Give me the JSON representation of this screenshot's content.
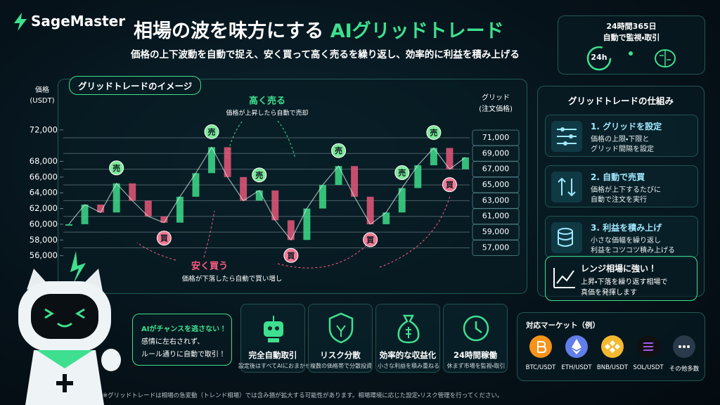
{
  "header": {
    "logo": "SageMaster",
    "title_prefix": "相場の波を味方にする",
    "title_highlight": "AIグリッドトレード",
    "subtitle": "価格の上下波動を自動で捉え、安く買って高く売るを繰り返し、効率的に利益を積み上げる"
  },
  "badge": {
    "line1": "24時間365日",
    "line2": "自動で監視・取引",
    "icon_text": "24h"
  },
  "chart_data": {
    "type": "line",
    "title": "グリッドトレードのイメージ",
    "y_label": [
      "価格",
      "(USDT)"
    ],
    "grid_label": [
      "グリッド",
      "(注文価格)"
    ],
    "categories": [
      null,
      null,
      null,
      null,
      null,
      null,
      null,
      null,
      null,
      null,
      null,
      null,
      null,
      null,
      null,
      null,
      null,
      null,
      null,
      null,
      null,
      null,
      null,
      null,
      null,
      null
    ],
    "values": [
      60000,
      62500,
      61500,
      65200,
      63000,
      61000,
      60200,
      63500,
      66500,
      69800,
      66000,
      63000,
      64300,
      60500,
      58000,
      62000,
      65000,
      67400,
      63500,
      60000,
      61500,
      64600,
      67500,
      69700,
      67000,
      68500
    ],
    "sell_markers": {
      "label": "売",
      "values": [
        null,
        null,
        null,
        65200,
        null,
        null,
        null,
        null,
        null,
        69800,
        null,
        null,
        64300,
        null,
        null,
        null,
        null,
        67400,
        null,
        null,
        null,
        64600,
        null,
        69700,
        null,
        null
      ]
    },
    "buy_markers": {
      "label": "買",
      "values": [
        null,
        null,
        null,
        null,
        null,
        null,
        60200,
        null,
        null,
        null,
        null,
        null,
        null,
        null,
        58000,
        null,
        null,
        null,
        null,
        60000,
        null,
        null,
        null,
        null,
        67000,
        null
      ]
    },
    "ylim": [
      54000,
      73500
    ],
    "yticks": [
      {
        "value": 56000,
        "label": "56,000"
      },
      {
        "value": 58000,
        "label": "58,000"
      },
      {
        "value": 60000,
        "label": "60,000"
      },
      {
        "value": 62000,
        "label": "62,000"
      },
      {
        "value": 64000,
        "label": "64,000"
      },
      {
        "value": 66000,
        "label": "66,000"
      },
      {
        "value": 68000,
        "label": "68,000"
      },
      {
        "value": 72000,
        "label": "72,000"
      }
    ],
    "grid_levels": [
      {
        "value": 71000,
        "label": "71,000"
      },
      {
        "value": 69000,
        "label": "69,000"
      },
      {
        "value": 67000,
        "label": "67,000"
      },
      {
        "value": 65000,
        "label": "65,000"
      },
      {
        "value": 63000,
        "label": "63,000"
      },
      {
        "value": 61000,
        "label": "61,000"
      },
      {
        "value": 59000,
        "label": "59,000"
      },
      {
        "value": 57000,
        "label": "57,000"
      }
    ],
    "sell_note": {
      "title": "高く売る",
      "text": "価格が上昇したら自動で売却"
    },
    "buy_note": {
      "title": "安く買う",
      "text": "価格が下落したら自動で買い増し"
    },
    "up_color": "#3ddc8a",
    "down_color": "#e8577a"
  },
  "mechanism": {
    "title": "グリッドトレードの仕組み",
    "steps": [
      {
        "title": "1. グリッドを設定",
        "lines": [
          "価格の上限・下限と",
          "グリッド間隔を設定"
        ]
      },
      {
        "title": "2. 自動で売買",
        "lines": [
          "価格が上下するたびに",
          "自動で注文を実行"
        ]
      },
      {
        "title": "3. 利益を積み上げ",
        "lines": [
          "小さな価幅を繰り返し",
          "利益をコツコツ積み上げる"
        ]
      }
    ],
    "callout": {
      "title": "レンジ相場に強い！",
      "lines": [
        "上昇・下落を繰り返す相場で",
        "真価を発揮します"
      ]
    }
  },
  "mascot": {
    "bubble": [
      "AIがチャンスを逃さない！",
      "感情に左右されず、",
      "ルール通りに自動で取引！"
    ]
  },
  "features": [
    {
      "title": "完全自動取引",
      "desc": "設定後はすべてAIにおまかせ"
    },
    {
      "title": "リスク分散",
      "desc": "複数の価格帯で分散投資"
    },
    {
      "title": "効率的な収益化",
      "desc": "小さな利益を積み重ねる"
    },
    {
      "title": "24時間稼働",
      "desc": "休まず市場を監視・取引"
    }
  ],
  "markets": {
    "title": "対応マーケット（例）",
    "items": [
      "BTC/USDT",
      "ETH/USDT",
      "BNB/USDT",
      "SOL/USDT",
      "その他多数"
    ]
  },
  "footnote": "※グリッドトレードは相場の急変動（トレンド相場）では含み損が拡大する可能性があります。相場環境に応じた設定・リスク管理を行ってください。"
}
